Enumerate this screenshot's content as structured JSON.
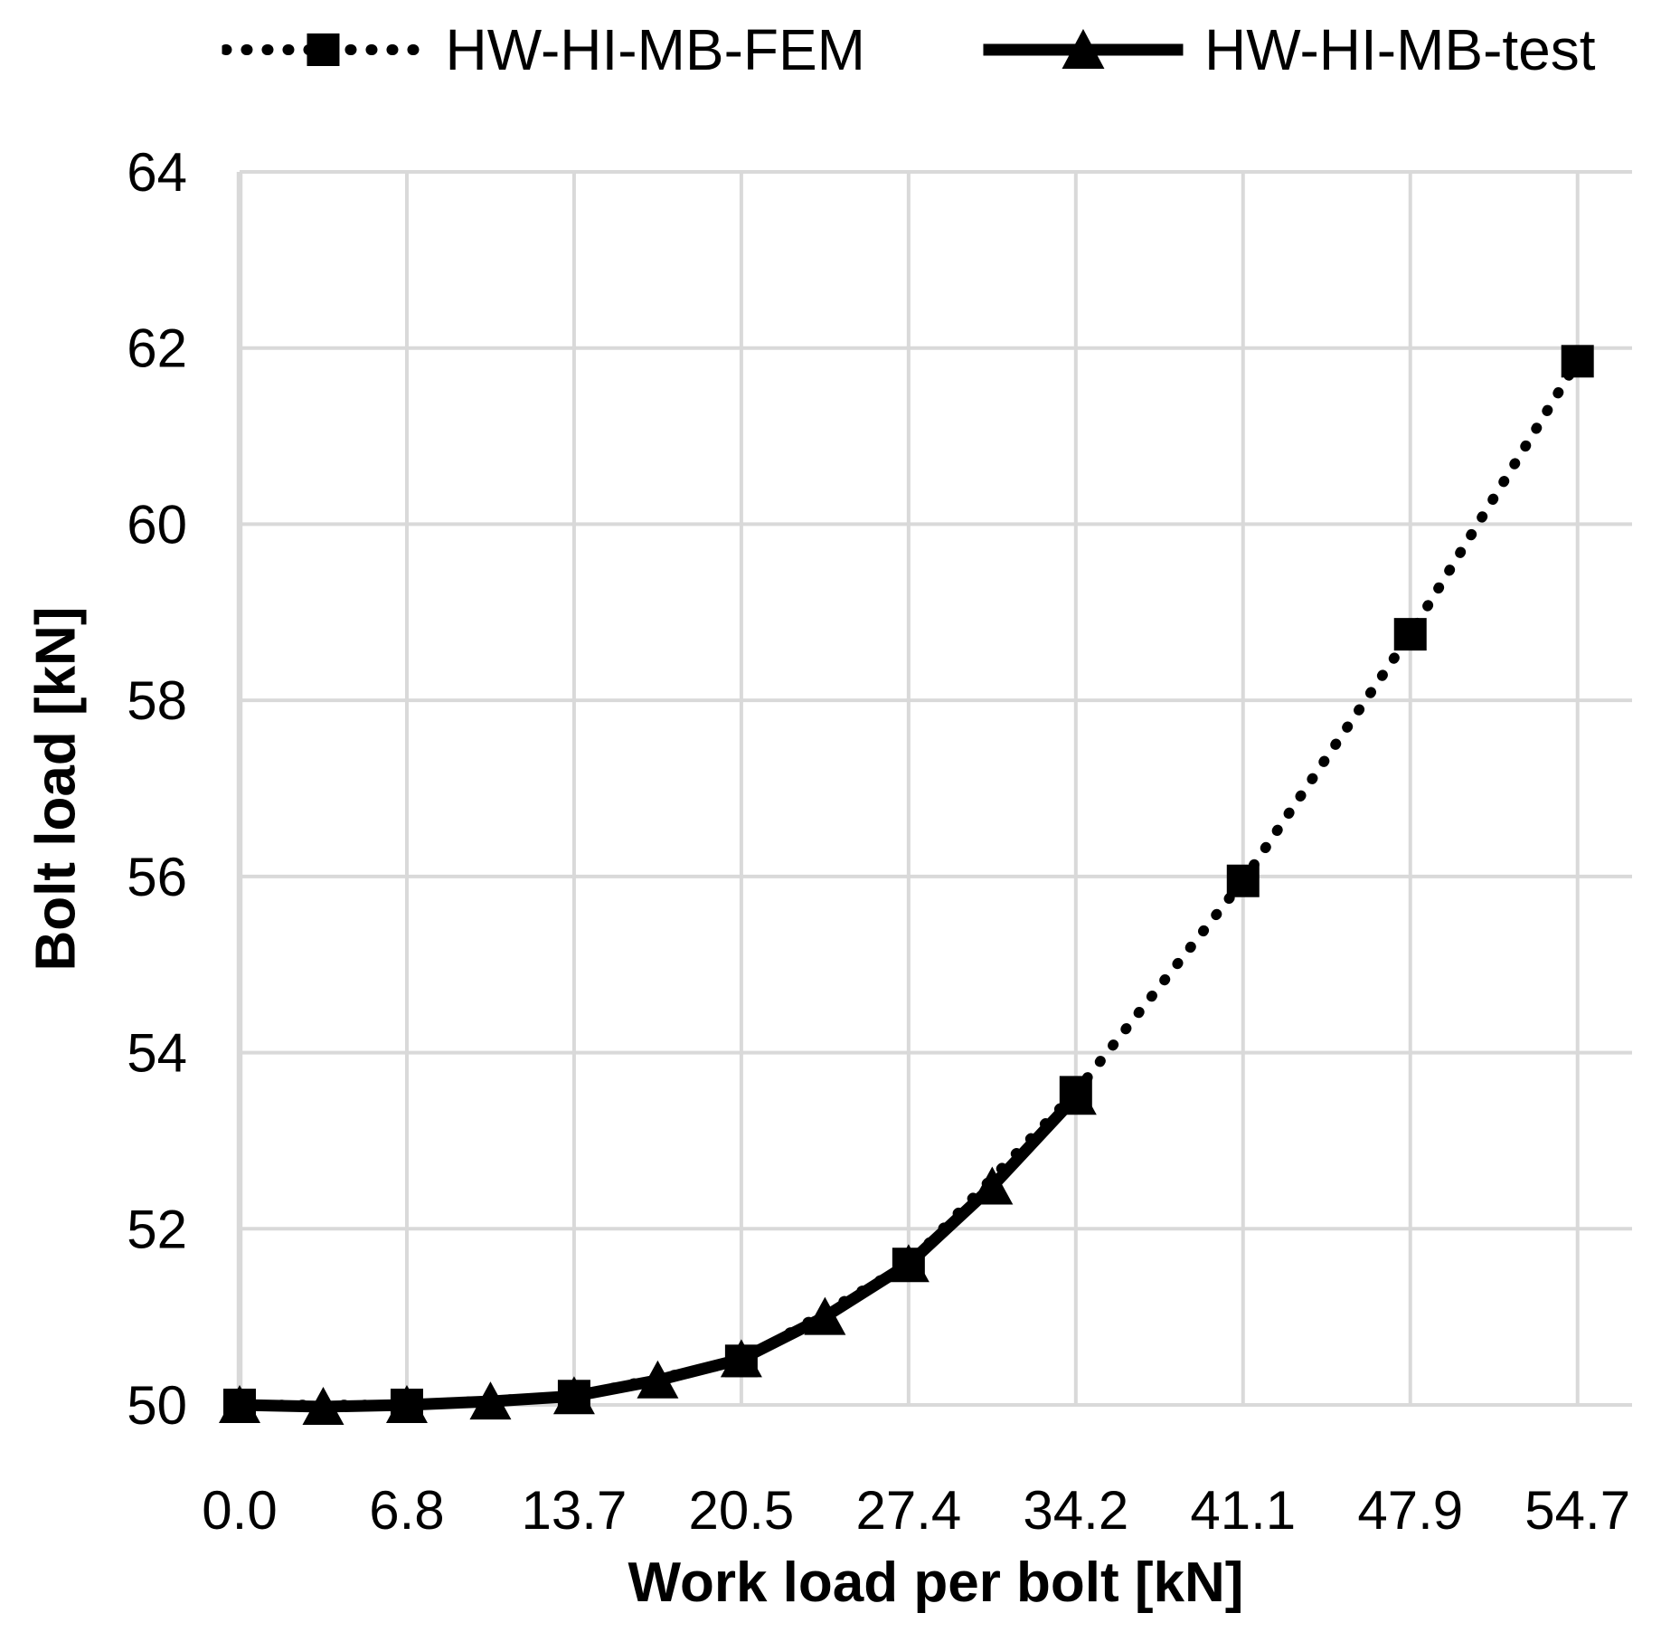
{
  "figure": {
    "background": "#ffffff",
    "text_color": "#000000"
  },
  "legend": {
    "items": [
      {
        "label": "HW-HI-MB-FEM",
        "marker": "square",
        "line": "dotted",
        "color": "#000000"
      },
      {
        "label": "HW-HI-MB-test",
        "marker": "triangle",
        "line": "solid",
        "color": "#000000"
      }
    ]
  },
  "chart_data": {
    "type": "line",
    "title": "",
    "xlabel": "Work load per bolt [kN]",
    "ylabel": "Bolt load [kN]",
    "x_tick_labels": [
      "0.0",
      "6.8",
      "13.7",
      "20.5",
      "27.4",
      "34.2",
      "41.1",
      "47.9",
      "54.7"
    ],
    "x_tick_values": [
      0,
      6.84,
      13.68,
      20.52,
      27.36,
      34.2,
      41.04,
      47.88,
      54.72
    ],
    "y_ticks": [
      50,
      52,
      54,
      56,
      58,
      60,
      62,
      64
    ],
    "ylim": [
      50,
      64
    ],
    "xlim": [
      0,
      56.95
    ],
    "grid": true,
    "gridline_color": "#d9d9d9",
    "legend_position": "top",
    "series": [
      {
        "name": "HW-HI-MB-FEM",
        "marker": "square",
        "line": "dotted",
        "color": "#000000",
        "x": [
          0,
          6.84,
          13.68,
          20.52,
          27.36,
          34.2,
          41.04,
          47.88,
          54.72
        ],
        "y": [
          50.0,
          50.0,
          50.1,
          50.5,
          51.6,
          53.55,
          55.95,
          58.75,
          61.85
        ]
      },
      {
        "name": "HW-HI-MB-test",
        "marker": "triangle",
        "line": "solid",
        "color": "#000000",
        "x": [
          0,
          3.42,
          6.84,
          10.26,
          13.68,
          17.1,
          20.52,
          23.94,
          27.36,
          30.78,
          34.2
        ],
        "y": [
          50.0,
          49.98,
          50.0,
          50.04,
          50.1,
          50.28,
          50.52,
          51.0,
          51.6,
          52.48,
          53.5
        ]
      }
    ]
  }
}
